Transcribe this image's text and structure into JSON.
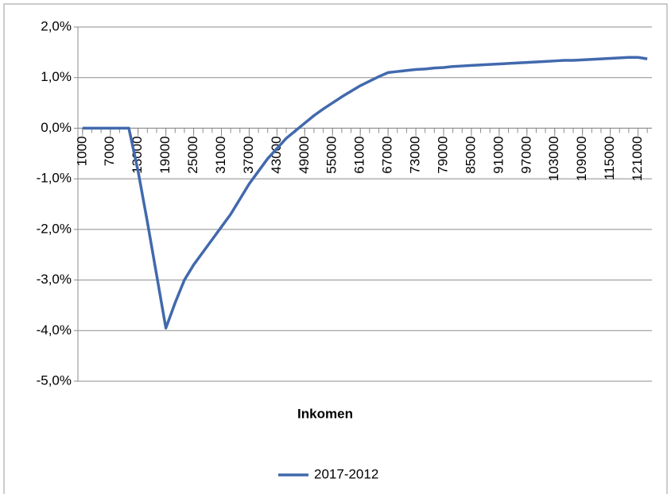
{
  "chart_data": {
    "type": "line",
    "x_label": "Inkomen",
    "x": [
      1000,
      3000,
      5000,
      7000,
      9000,
      11000,
      13000,
      15000,
      17000,
      19000,
      21000,
      23000,
      25000,
      27000,
      29000,
      31000,
      33000,
      35000,
      37000,
      39000,
      41000,
      43000,
      45000,
      47000,
      49000,
      51000,
      53000,
      55000,
      57000,
      59000,
      61000,
      63000,
      65000,
      67000,
      69000,
      71000,
      73000,
      75000,
      77000,
      79000,
      81000,
      83000,
      85000,
      87000,
      89000,
      91000,
      93000,
      95000,
      97000,
      99000,
      101000,
      103000,
      105000,
      107000,
      109000,
      111000,
      113000,
      115000,
      117000,
      119000,
      121000,
      123000
    ],
    "series": [
      {
        "name": "2017-2012",
        "color": "#4169ad",
        "values": [
          0,
          0,
          0,
          0,
          0,
          0,
          -0.85,
          -1.85,
          -2.9,
          -3.95,
          -3.45,
          -3.0,
          -2.7,
          -2.45,
          -2.2,
          -1.95,
          -1.7,
          -1.4,
          -1.1,
          -0.85,
          -0.6,
          -0.4,
          -0.2,
          -0.05,
          0.1,
          0.25,
          0.38,
          0.5,
          0.62,
          0.73,
          0.84,
          0.93,
          1.02,
          1.1,
          1.12,
          1.14,
          1.16,
          1.17,
          1.19,
          1.2,
          1.22,
          1.23,
          1.24,
          1.25,
          1.26,
          1.27,
          1.28,
          1.29,
          1.3,
          1.31,
          1.32,
          1.33,
          1.34,
          1.34,
          1.35,
          1.36,
          1.37,
          1.38,
          1.39,
          1.4,
          1.4,
          1.37
        ]
      }
    ],
    "xlim": [
      0,
      124000
    ],
    "xticks": [
      1000,
      7000,
      13000,
      19000,
      25000,
      31000,
      37000,
      43000,
      49000,
      55000,
      61000,
      67000,
      73000,
      79000,
      85000,
      91000,
      97000,
      103000,
      109000,
      115000,
      121000
    ],
    "ylim": [
      -5,
      2
    ],
    "yticks": [
      {
        "value": 2,
        "label": "2,0%"
      },
      {
        "value": 1,
        "label": "1,0%"
      },
      {
        "value": 0,
        "label": "0,0%"
      },
      {
        "value": -1,
        "label": "-1,0%"
      },
      {
        "value": -2,
        "label": "-2,0%"
      },
      {
        "value": -3,
        "label": "-3,0%"
      },
      {
        "value": -4,
        "label": "-4,0%"
      },
      {
        "value": -5,
        "label": "-5,0%"
      }
    ],
    "grid": true,
    "legend": "bottom"
  }
}
